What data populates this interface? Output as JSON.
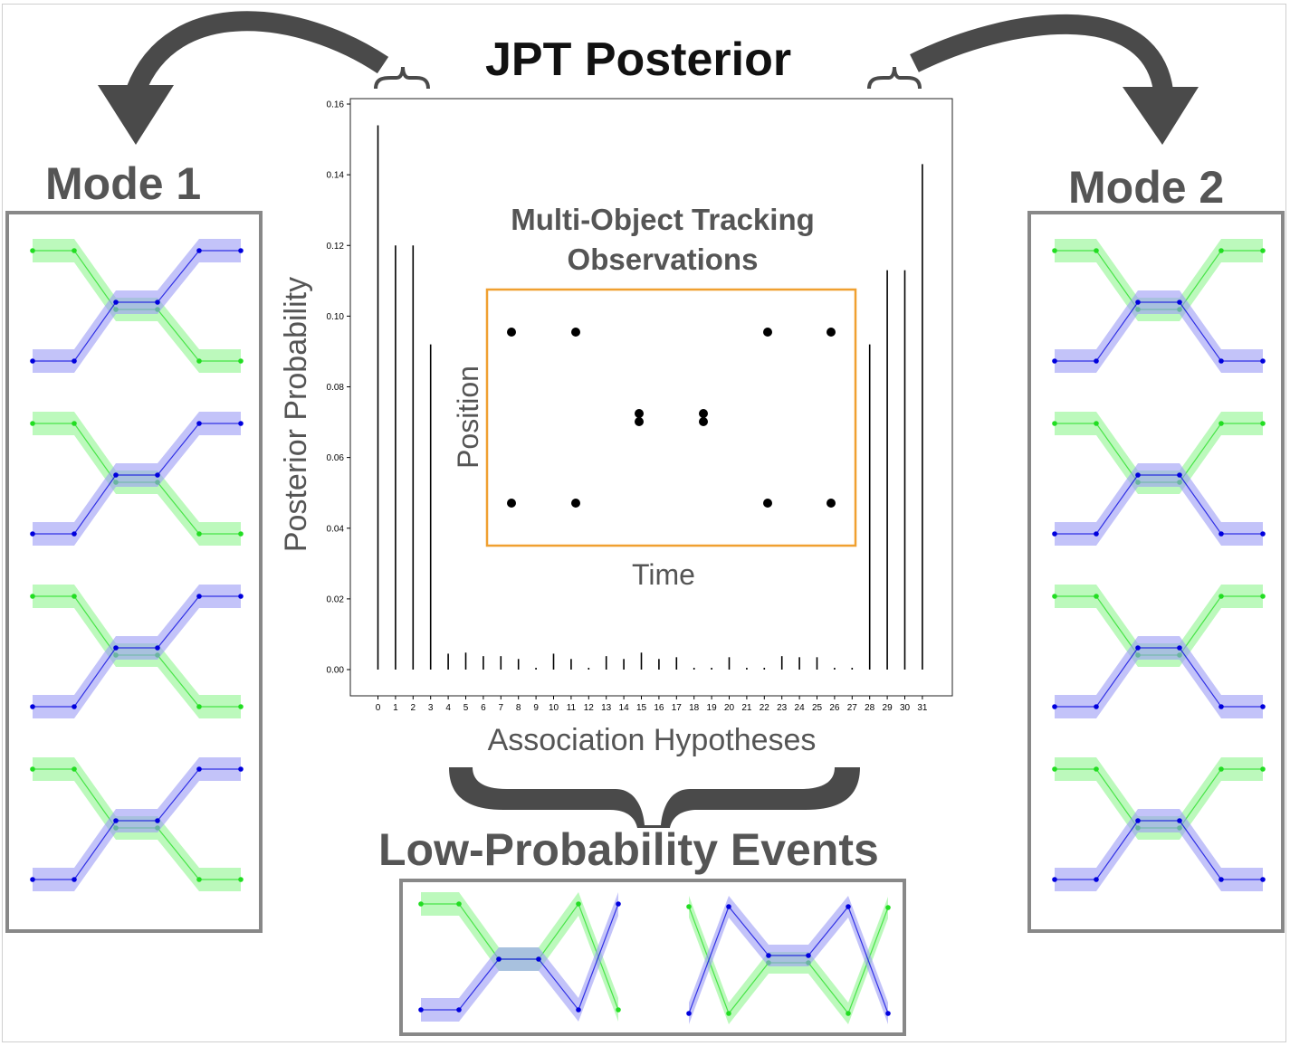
{
  "title": "JPT Posterior",
  "mode1": {
    "title": "Mode 1"
  },
  "mode2": {
    "title": "Mode 2"
  },
  "low_probability": {
    "title": "Low-Probability Events"
  },
  "inset": {
    "title_line1": "Multi-Object Tracking",
    "title_line2": "Observations",
    "xlabel": "Time",
    "ylabel": "Position",
    "border_color": "#f0a030"
  },
  "colors": {
    "track_green": "#22dd22",
    "track_blue": "#0000dd",
    "band_green": "#8ff58f",
    "band_blue": "#9b9bf5",
    "arrow": "#4a4a4a",
    "panel_border": "#888888"
  },
  "chart_data": {
    "type": "bar",
    "xlabel": "Association Hypotheses",
    "ylabel": "Posterior Probability",
    "categories": [
      "0",
      "1",
      "2",
      "3",
      "4",
      "5",
      "6",
      "7",
      "8",
      "9",
      "10",
      "11",
      "12",
      "13",
      "14",
      "15",
      "16",
      "17",
      "18",
      "19",
      "20",
      "21",
      "22",
      "23",
      "24",
      "25",
      "26",
      "27",
      "28",
      "29",
      "30",
      "31"
    ],
    "values": [
      0.154,
      0.12,
      0.12,
      0.092,
      0.0045,
      0.0048,
      0.0038,
      0.0038,
      0.003,
      0.0005,
      0.0045,
      0.003,
      0.0005,
      0.0038,
      0.003,
      0.0048,
      0.003,
      0.0035,
      0.0005,
      0.0005,
      0.0035,
      0.0005,
      0.0005,
      0.0038,
      0.0035,
      0.0035,
      0.0005,
      0.0005,
      0.092,
      0.113,
      0.113,
      0.143
    ],
    "yticks": [
      "0.00",
      "0.02",
      "0.04",
      "0.06",
      "0.08",
      "0.10",
      "0.12",
      "0.14",
      "0.16"
    ],
    "ylim": [
      0,
      0.16
    ],
    "grid": false
  }
}
